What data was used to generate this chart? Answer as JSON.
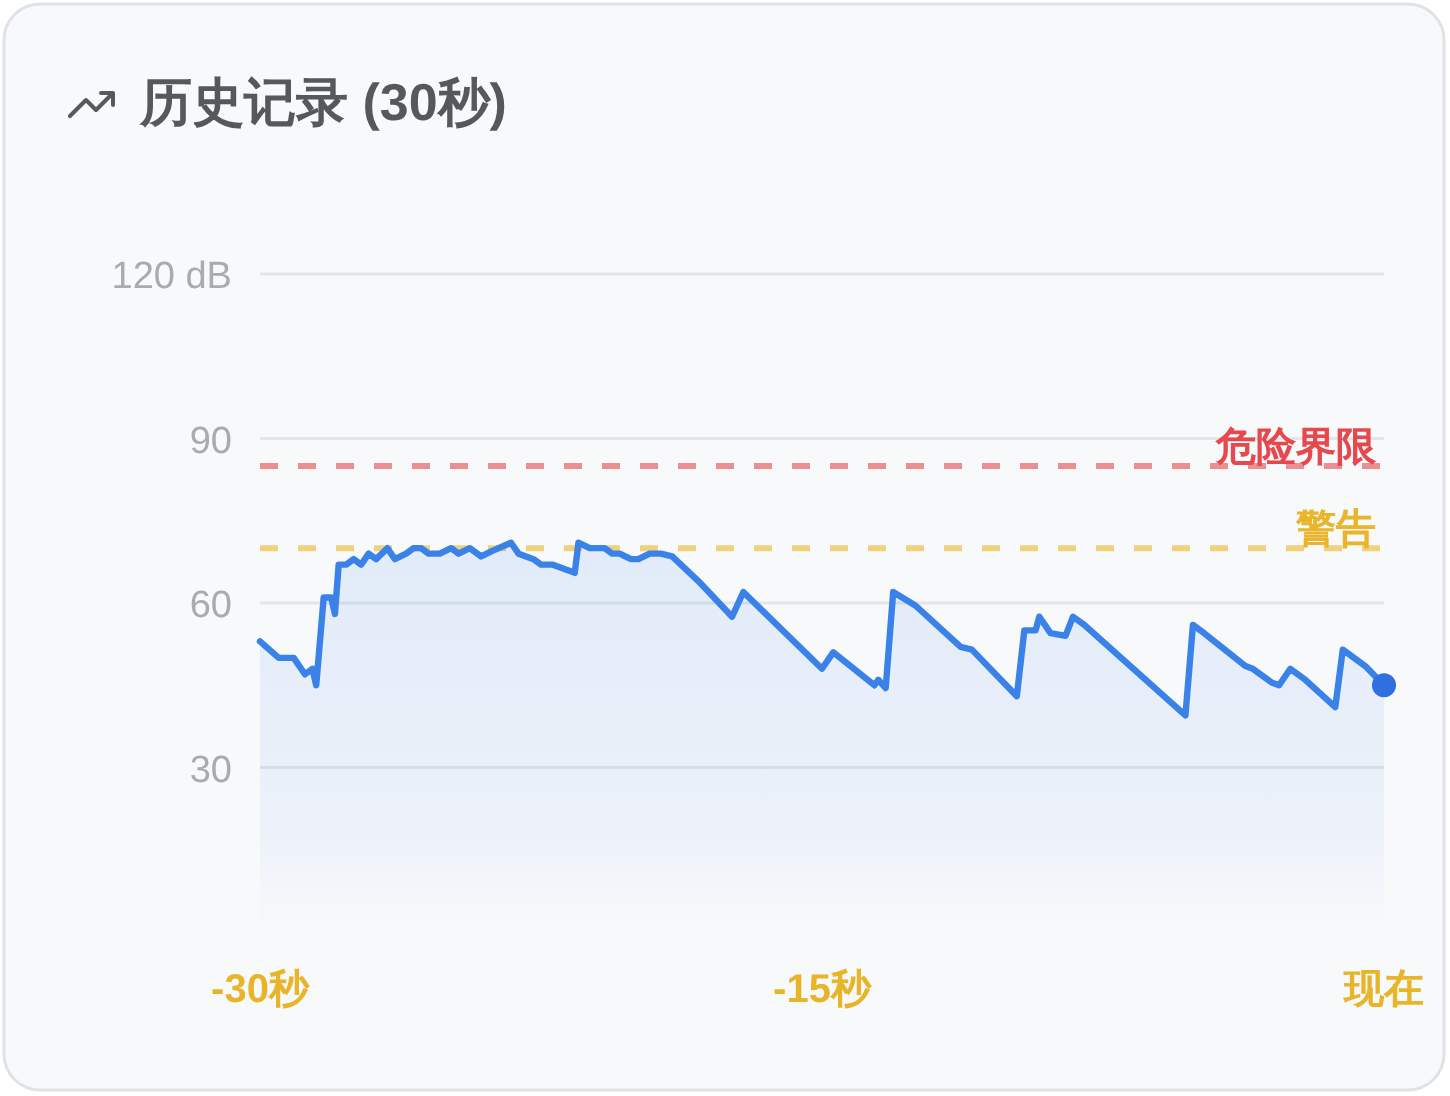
{
  "chart_data": {
    "type": "area",
    "title": "历史记录 (30秒)",
    "series": [
      {
        "color": "#3b82e8",
        "x": [
          -30.0,
          -29.5,
          -29.1,
          -28.8,
          -28.6,
          -28.5,
          -28.3,
          -28.1,
          -28.0,
          -27.9,
          -27.7,
          -27.5,
          -27.3,
          -27.1,
          -26.9,
          -26.6,
          -26.4,
          -26.1,
          -25.9,
          -25.7,
          -25.5,
          -25.2,
          -24.9,
          -24.7,
          -24.4,
          -24.1,
          -23.8,
          -23.3,
          -23.1,
          -22.7,
          -22.5,
          -22.2,
          -21.8,
          -21.6,
          -21.5,
          -21.2,
          -20.8,
          -20.6,
          -20.4,
          -20.1,
          -19.9,
          -19.6,
          -19.3,
          -19.0,
          -18.3,
          -17.4,
          -17.1,
          -15.0,
          -14.7,
          -13.6,
          -13.5,
          -13.3,
          -13.1,
          -12.5,
          -11.3,
          -11.0,
          -9.8,
          -9.6,
          -9.3,
          -9.2,
          -8.9,
          -8.5,
          -8.3,
          -8.0,
          -5.3,
          -5.1,
          -4.8,
          -3.7,
          -3.5,
          -3.0,
          -2.8,
          -2.5,
          -2.1,
          -1.3,
          -1.1,
          -0.5,
          0
        ],
        "values": [
          53,
          50,
          50,
          47,
          48,
          45,
          61,
          61,
          58,
          67,
          67,
          68,
          67,
          69,
          68,
          70,
          68,
          69,
          70,
          70,
          69,
          69,
          70,
          69,
          70,
          68.5,
          69.5,
          71,
          69,
          68,
          67,
          67,
          66,
          65.5,
          71,
          70,
          70,
          69,
          69,
          68,
          68,
          69,
          69,
          68.5,
          64,
          57.5,
          62,
          48,
          51,
          45,
          46,
          44.5,
          62,
          59.5,
          52,
          51.5,
          43,
          55,
          55,
          57.5,
          54.5,
          54,
          57.5,
          56,
          39.5,
          56,
          54.5,
          48.5,
          48,
          45.5,
          45,
          48,
          46,
          41,
          51.5,
          48.5,
          45
        ]
      },
      {
        "type": "scatter",
        "color": "#2f6fe0",
        "x": [
          0
        ],
        "values": [
          45
        ]
      }
    ],
    "xlim": [
      -30,
      0
    ],
    "xticks": [
      {
        "value": -30,
        "label": "-30秒"
      },
      {
        "value": -15,
        "label": "-15秒"
      },
      {
        "value": 0,
        "label": "现在"
      }
    ],
    "ylim": [
      0,
      120
    ],
    "yticks": [
      {
        "value": 120,
        "label": "120 dB"
      },
      90,
      60,
      30
    ],
    "grid": "y",
    "ref_lines": [
      {
        "axis": "y",
        "value": 85,
        "label": "危险界限",
        "color": "#e5484d",
        "line_style": "dashed"
      },
      {
        "axis": "y",
        "value": 70,
        "label": "警告",
        "color": "#e9b52b",
        "line_style": "dashed"
      }
    ]
  }
}
